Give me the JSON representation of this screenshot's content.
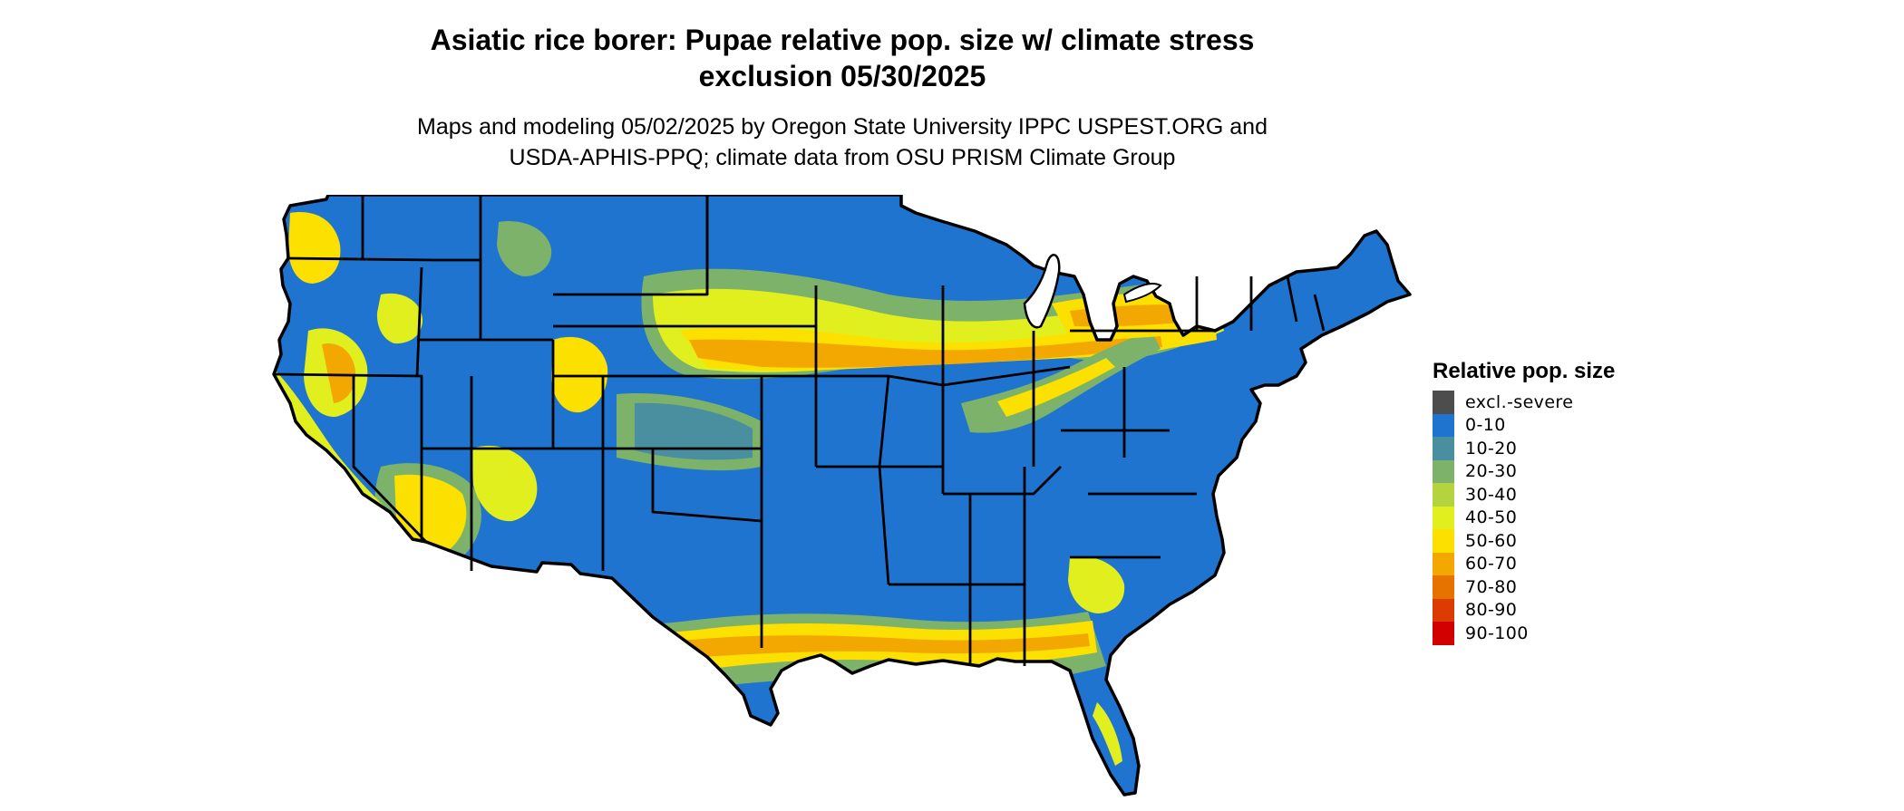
{
  "title": {
    "line1": "Asiatic rice borer: Pupae relative pop. size w/ climate stress",
    "line2": "exclusion 05/30/2025"
  },
  "subtitle": {
    "line1": "Maps and modeling 05/02/2025 by Oregon State University IPPC USPEST.ORG and",
    "line2": "USDA-APHIS-PPQ; climate data from OSU PRISM Climate Group"
  },
  "legend": {
    "title": "Relative pop. size",
    "items": [
      {
        "label": "excl.-severe",
        "color": "#4d4d4d"
      },
      {
        "label": "0-10",
        "color": "#1e74cf"
      },
      {
        "label": "10-20",
        "color": "#4a8fa0"
      },
      {
        "label": "20-30",
        "color": "#7db26b"
      },
      {
        "label": "30-40",
        "color": "#b3d43e"
      },
      {
        "label": "40-50",
        "color": "#e1ef1f"
      },
      {
        "label": "50-60",
        "color": "#fbe000"
      },
      {
        "label": "60-70",
        "color": "#f2a800"
      },
      {
        "label": "70-80",
        "color": "#e67300"
      },
      {
        "label": "80-90",
        "color": "#dd3c00"
      },
      {
        "label": "90-100",
        "color": "#d20000"
      }
    ]
  },
  "map": {
    "base_color": "#1e74cf",
    "border_color": "#000000"
  }
}
